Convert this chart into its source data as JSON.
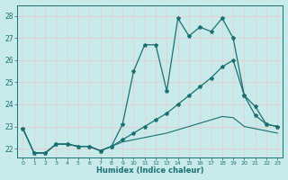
{
  "xlabel": "Humidex (Indice chaleur)",
  "bg_color": "#c8eaea",
  "grid_color": "#d8f0f0",
  "line_color": "#1a7070",
  "xlim": [
    -0.5,
    23.5
  ],
  "ylim": [
    21.6,
    28.5
  ],
  "yticks": [
    22,
    23,
    24,
    25,
    26,
    27,
    28
  ],
  "xticks": [
    0,
    1,
    2,
    3,
    4,
    5,
    6,
    7,
    8,
    9,
    10,
    11,
    12,
    13,
    14,
    15,
    16,
    17,
    18,
    19,
    20,
    21,
    22,
    23
  ],
  "line1_x": [
    0,
    1,
    2,
    3,
    4,
    5,
    6,
    7,
    8,
    9,
    10,
    11,
    12,
    13,
    14,
    15,
    16,
    17,
    18,
    19,
    20,
    21,
    22,
    23
  ],
  "line1_y": [
    22.9,
    21.8,
    21.8,
    22.2,
    22.2,
    22.1,
    22.1,
    21.9,
    22.1,
    23.1,
    25.5,
    26.7,
    26.7,
    24.6,
    27.9,
    27.1,
    27.5,
    27.3,
    27.9,
    27.0,
    24.4,
    23.9,
    23.1,
    23.0
  ],
  "line2_x": [
    0,
    1,
    2,
    3,
    4,
    5,
    6,
    7,
    8,
    9,
    10,
    11,
    12,
    13,
    14,
    15,
    16,
    17,
    18,
    19,
    20,
    21,
    22,
    23
  ],
  "line2_y": [
    22.9,
    21.8,
    21.8,
    22.2,
    22.2,
    22.1,
    22.1,
    21.9,
    22.1,
    22.4,
    22.7,
    23.0,
    23.3,
    23.6,
    24.0,
    24.4,
    24.8,
    25.2,
    25.7,
    26.0,
    24.4,
    23.5,
    23.1,
    23.0
  ],
  "line3_x": [
    0,
    1,
    2,
    3,
    4,
    5,
    6,
    7,
    8,
    9,
    10,
    11,
    12,
    13,
    14,
    15,
    16,
    17,
    18,
    19,
    20,
    21,
    22,
    23
  ],
  "line3_y": [
    22.9,
    21.8,
    21.8,
    22.2,
    22.2,
    22.1,
    22.1,
    21.9,
    22.1,
    22.3,
    22.4,
    22.5,
    22.6,
    22.7,
    22.85,
    23.0,
    23.15,
    23.3,
    23.45,
    23.4,
    23.0,
    22.9,
    22.8,
    22.7
  ]
}
